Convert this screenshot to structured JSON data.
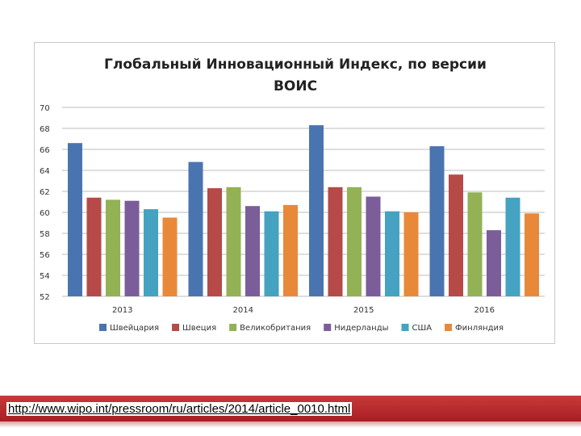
{
  "chart_data": {
    "type": "bar",
    "title_lines": [
      "Глобальный Инновационный Индекс, по версии",
      "ВОИС"
    ],
    "categories": [
      "2013",
      "2014",
      "2015",
      "2016"
    ],
    "series": [
      {
        "name": "Швейцария",
        "color": "#4a74b0",
        "values": [
          66.6,
          64.8,
          68.3,
          66.3
        ]
      },
      {
        "name": "Швеция",
        "color": "#b54a48",
        "values": [
          61.4,
          62.3,
          62.4,
          63.6
        ]
      },
      {
        "name": "Великобритания",
        "color": "#93b155",
        "values": [
          61.2,
          62.4,
          62.4,
          61.9
        ]
      },
      {
        "name": "Нидерланды",
        "color": "#7b5d9a",
        "values": [
          61.1,
          60.6,
          61.5,
          58.3
        ]
      },
      {
        "name": "США",
        "color": "#45a2c0",
        "values": [
          60.3,
          60.1,
          60.1,
          61.4
        ]
      },
      {
        "name": "Финляндия",
        "color": "#e8893a",
        "values": [
          59.5,
          60.7,
          60.0,
          59.9
        ]
      }
    ],
    "ylim": [
      52,
      70
    ],
    "yticks": [
      "52",
      "54",
      "56",
      "58",
      "60",
      "62",
      "64",
      "66",
      "68",
      "70"
    ],
    "grid": true,
    "legend_position": "bottom"
  },
  "footer": {
    "link_text": "http://www.wipo.int/pressroom/ru/articles/2014/article_0010.html"
  }
}
